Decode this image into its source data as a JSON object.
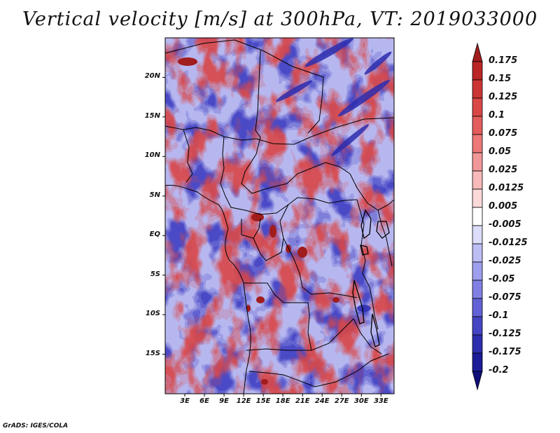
{
  "title": "Vertical velocity [m/s] at 300hPa, VT: 2019033000",
  "credit": "GrADS: IGES/COLA",
  "map": {
    "lat_ticks": [
      "20N",
      "15N",
      "10N",
      "5N",
      "EQ",
      "5S",
      "10S",
      "15S"
    ],
    "lon_ticks": [
      "3E",
      "6E",
      "9E",
      "12E",
      "15E",
      "18E",
      "21E",
      "24E",
      "27E",
      "30E",
      "33E"
    ],
    "lat_range": [
      -20,
      25
    ],
    "lon_range": [
      0,
      35
    ]
  },
  "colorbar": {
    "labels": [
      "0.175",
      "0.15",
      "0.125",
      "0.1",
      "0.075",
      "0.05",
      "0.025",
      "0.0125",
      "0.005",
      "-0.005",
      "-0.0125",
      "-0.025",
      "-0.05",
      "-0.075",
      "-0.1",
      "-0.125",
      "-0.175",
      "-0.2"
    ],
    "colors": [
      "#a11c1c",
      "#bb2525",
      "#cc3535",
      "#d94747",
      "#e35d5d",
      "#ec7878",
      "#f29797",
      "#f7b9b9",
      "#fbd9d9",
      "#ffffff",
      "#dcdcfb",
      "#bdbdf5",
      "#9e9eee",
      "#8080e4",
      "#6262d6",
      "#4545c4",
      "#2d2daf",
      "#1c1c98",
      "#0f0f7a"
    ]
  }
}
